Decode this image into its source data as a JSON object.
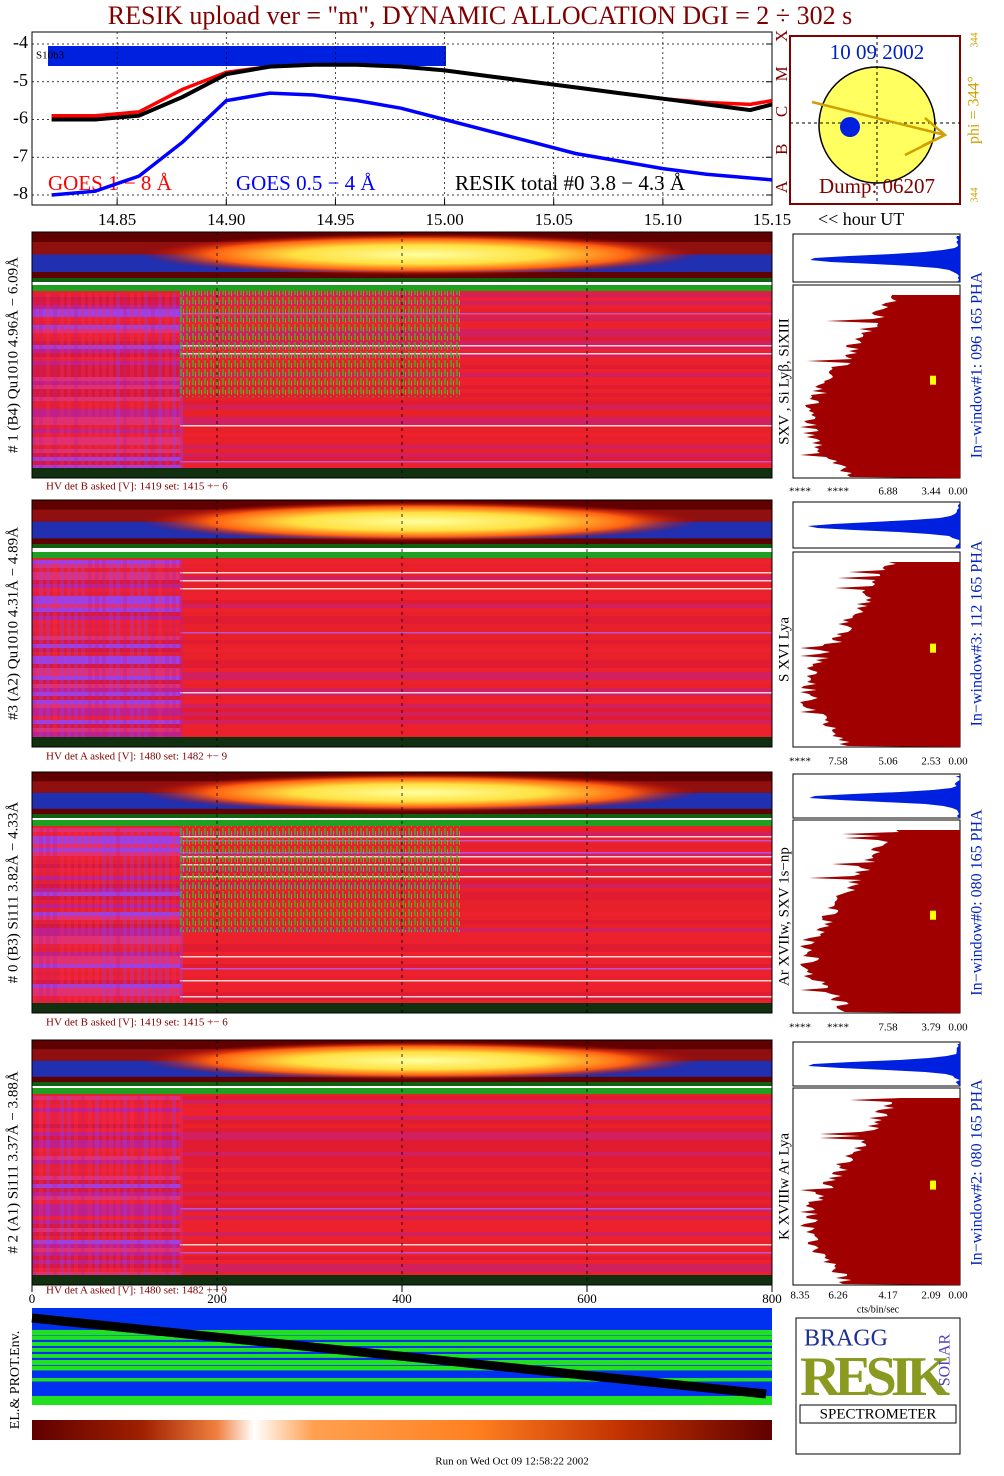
{
  "title": "RESIK upload ver = \"m\", DYNAMIC ALLOCATION  DGI =   2 ÷ 302 s",
  "chart_data": [
    {
      "type": "line",
      "x": [
        14.82,
        14.84,
        14.86,
        14.88,
        14.9,
        14.92,
        14.94,
        14.96,
        14.98,
        15.0,
        15.02,
        15.04,
        15.06,
        15.08,
        15.1,
        15.12,
        15.14,
        15.15
      ],
      "series": [
        {
          "name": "GOES 1 − 8 Å",
          "color": "#ff0000",
          "values": [
            -5.9,
            -5.9,
            -5.8,
            -5.2,
            -4.75,
            -4.6,
            -4.55,
            -4.55,
            -4.6,
            -4.7,
            -4.85,
            -5.0,
            -5.15,
            -5.3,
            -5.45,
            -5.55,
            -5.6,
            -5.5
          ]
        },
        {
          "name": "GOES 0.5 − 4 Å",
          "color": "#0000ff",
          "values": [
            -8.0,
            -7.9,
            -7.5,
            -6.6,
            -5.5,
            -5.3,
            -5.35,
            -5.5,
            -5.7,
            -6.0,
            -6.3,
            -6.6,
            -6.9,
            -7.1,
            -7.3,
            -7.45,
            -7.55,
            -7.6
          ]
        },
        {
          "name": "RESIK total #0  3.8 − 4.3 Å",
          "color": "#000000",
          "values": [
            -6.0,
            -6.0,
            -5.9,
            -5.4,
            -4.8,
            -4.6,
            -4.55,
            -4.55,
            -4.6,
            -4.7,
            -4.85,
            -5.0,
            -5.15,
            -5.3,
            -5.45,
            -5.6,
            -5.75,
            -5.6
          ]
        }
      ],
      "xlim": [
        14.811,
        15.15
      ],
      "xticks": [
        14.85,
        {
          "value": 14.9,
          "label": "14.90"
        },
        14.95,
        {
          "value": 15,
          "label": "15.00"
        },
        15.05,
        {
          "value": 15.1,
          "label": "15.10"
        },
        15.15
      ],
      "xlabel": "<< hour UT",
      "ylim": [
        -8,
        -4
      ],
      "yticks": [
        -4,
        -5,
        -6,
        -7,
        -8
      ],
      "y2lim": [
        -8,
        -4
      ],
      "y2ticks": [
        {
          "value": -8,
          "label": "A"
        },
        {
          "value": -7,
          "label": "B"
        },
        {
          "value": -6,
          "label": "C"
        },
        {
          "value": -5,
          "label": "M"
        },
        {
          "value": -4,
          "label": "X"
        }
      ],
      "bar_label": "S10b3",
      "grid": true
    }
  ],
  "inset": {
    "date": "10 09 2002",
    "dump": "Dump: 06207",
    "phi": "phi = 344°",
    "phi_sub": "344",
    "angle": "344"
  },
  "panels": [
    {
      "left_label": "# 1 (B4) Qu1010 4.96Å − 6.09Å",
      "right_label": "SXV , Si Lyβ, SiXIII",
      "hv": "HV det B asked [V]:  1419 set:  1415 +−    6",
      "window": "In−window#1:  096 165 PHA",
      "pha_ticks": [
        "****",
        "****",
        "6.88",
        "3.44",
        "0.00"
      ]
    },
    {
      "left_label": "#3 (A2) Qu1010  4.31Å − 4.89Å",
      "right_label": "S XVI Lya",
      "hv": "HV det A asked [V]:  1480 set:  1482 +−    9",
      "window": "In−window#3:  112 165 PHA",
      "pha_ticks": [
        "****",
        "7.58",
        "5.06",
        "2.53",
        "0.00"
      ]
    },
    {
      "left_label": "# 0 (B3) Si111  3.82Å − 4.33Å",
      "right_label": "Ar XVIIw,  SXV 1s−np",
      "hv": "HV det B asked [V]:  1419 set:  1415 +−    6",
      "window": "In−window#0:  080 165 PHA",
      "pha_ticks": [
        "****",
        "****",
        "7.58",
        "3.79",
        "0.00"
      ]
    },
    {
      "left_label": "# 2 (A1) Si111  3.37Å − 3.88Å",
      "right_label": "K XVIIIw  Ar Lya",
      "hv": "HV det A asked [V]:  1480 set:  1482 +−    9",
      "window": "In−window#2:  080 165 PHA",
      "pha_ticks": [
        "8.35",
        "6.26",
        "4.17",
        "2.09",
        "0.00"
      ]
    }
  ],
  "spectrum_axis": {
    "xlim": [
      0,
      800
    ],
    "xticks": [
      0,
      200,
      400,
      600,
      800
    ]
  },
  "pha_units": "cts/bin/sec",
  "env_label": "EL.& PROT.Env.",
  "logo": {
    "top": "BRAGG",
    "middle": "RESIK",
    "side": "SOLAR",
    "bottom": "SPECTROMETER"
  },
  "footer": "Run on Wed Oct 09 12:58:22 2002"
}
